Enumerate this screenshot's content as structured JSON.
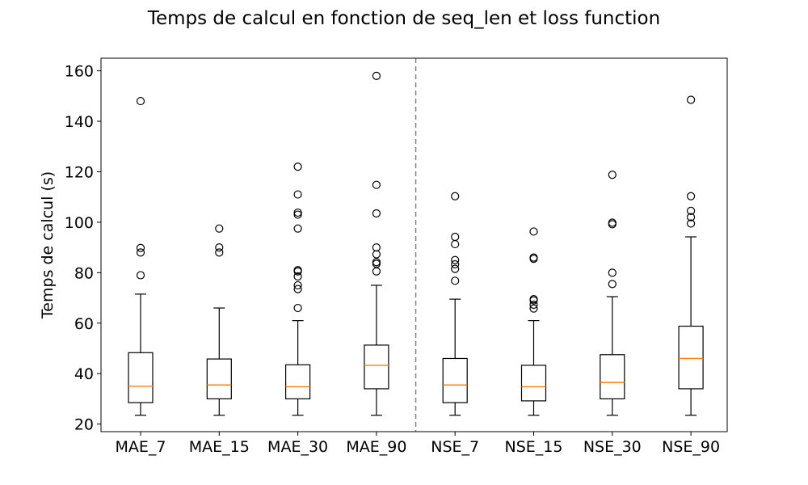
{
  "chart_data": {
    "type": "box",
    "title": "Temps de calcul en fonction de seq_len et loss function",
    "xlabel": "",
    "ylabel": "Temps de calcul (s)",
    "ylim": [
      17,
      165
    ],
    "yticks": [
      20,
      40,
      60,
      80,
      100,
      120,
      140,
      160
    ],
    "grid": false,
    "separator_after_category": "MAE_90",
    "colors": {
      "box": "#000000",
      "median": "#ff7f0e",
      "separator": "#808080"
    },
    "categories": [
      "MAE_7",
      "MAE_15",
      "MAE_30",
      "MAE_90",
      "NSE_7",
      "NSE_15",
      "NSE_30",
      "NSE_90"
    ],
    "boxes": [
      {
        "whisker_low": 23.5,
        "q1": 28.5,
        "median": 35,
        "q3": 48.3,
        "whisker_high": 71.5,
        "outliers": [
          79,
          88,
          89.8,
          148
        ]
      },
      {
        "whisker_low": 23.5,
        "q1": 30,
        "median": 35.5,
        "q3": 45.8,
        "whisker_high": 66,
        "outliers": [
          88,
          90,
          97.5
        ]
      },
      {
        "whisker_low": 23.5,
        "q1": 30,
        "median": 34.8,
        "q3": 43.5,
        "whisker_high": 61,
        "outliers": [
          66,
          73.5,
          75,
          78.5,
          80.5,
          81,
          97.5,
          103,
          103.8,
          111,
          122
        ]
      },
      {
        "whisker_low": 23.5,
        "q1": 34,
        "median": 43.3,
        "q3": 51.3,
        "whisker_high": 75,
        "outliers": [
          80.5,
          83.5,
          84.2,
          87.3,
          90,
          103.5,
          114.8,
          158
        ]
      },
      {
        "whisker_low": 23.5,
        "q1": 28.5,
        "median": 35.5,
        "q3": 46,
        "whisker_high": 69.5,
        "outliers": [
          76.8,
          81.5,
          83.3,
          85,
          91.3,
          94.2,
          110.3
        ]
      },
      {
        "whisker_low": 23.5,
        "q1": 29.2,
        "median": 34.8,
        "q3": 43.3,
        "whisker_high": 61,
        "outliers": [
          65.8,
          67.3,
          69,
          69.5,
          85.5,
          86,
          96.3
        ]
      },
      {
        "whisker_low": 23.5,
        "q1": 30,
        "median": 36.5,
        "q3": 47.5,
        "whisker_high": 70.5,
        "outliers": [
          75.5,
          80,
          99.2,
          99.8,
          118.8
        ]
      },
      {
        "whisker_low": 23.5,
        "q1": 34,
        "median": 46,
        "q3": 58.8,
        "whisker_high": 94.2,
        "outliers": [
          99.5,
          102,
          104.5,
          110.3,
          148.5
        ]
      }
    ]
  }
}
